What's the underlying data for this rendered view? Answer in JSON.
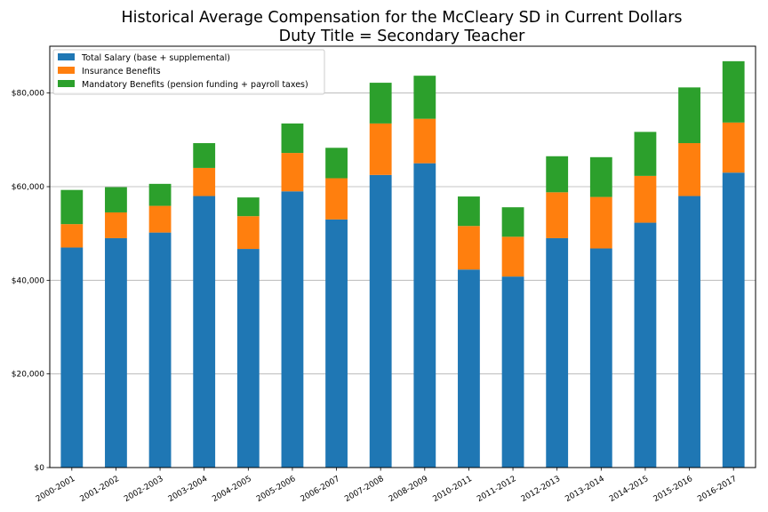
{
  "chart_data": {
    "type": "bar",
    "stacked": true,
    "title": "Historical Average Compensation for the McCleary SD in Current Dollars",
    "subtitle": "Duty Title = Secondary Teacher",
    "xlabel": "",
    "ylabel": "",
    "ylim": [
      0,
      90000
    ],
    "yticks": [
      0,
      20000,
      40000,
      60000,
      80000
    ],
    "ytick_labels": [
      "$0",
      "$20,000",
      "$40,000",
      "$60,000",
      "$80,000"
    ],
    "grid": "horizontal",
    "legend_position": "top-left",
    "categories": [
      "2000-2001",
      "2001-2002",
      "2002-2003",
      "2003-2004",
      "2004-2005",
      "2005-2006",
      "2006-2007",
      "2007-2008",
      "2008-2009",
      "2010-2011",
      "2011-2012",
      "2012-2013",
      "2013-2014",
      "2014-2015",
      "2015-2016",
      "2016-2017"
    ],
    "series": [
      {
        "name": "Total Salary (base + supplemental)",
        "color": "#1f77b4",
        "values": [
          47000,
          49000,
          50200,
          58000,
          46700,
          59000,
          53000,
          62500,
          65000,
          42300,
          40800,
          49000,
          46800,
          52300,
          58000,
          63000
        ]
      },
      {
        "name": "Insurance Benefits",
        "color": "#ff7f0e",
        "values": [
          5000,
          5500,
          5700,
          6000,
          7000,
          8200,
          8800,
          11000,
          9500,
          9300,
          8500,
          9800,
          11000,
          10000,
          11300,
          10700
        ]
      },
      {
        "name": "Mandatory Benefits (pension funding + payroll taxes)",
        "color": "#2ca02c",
        "values": [
          7300,
          5400,
          4700,
          5300,
          4000,
          6300,
          6500,
          8700,
          9200,
          6300,
          6300,
          7700,
          8500,
          9400,
          11900,
          13100
        ]
      }
    ]
  }
}
